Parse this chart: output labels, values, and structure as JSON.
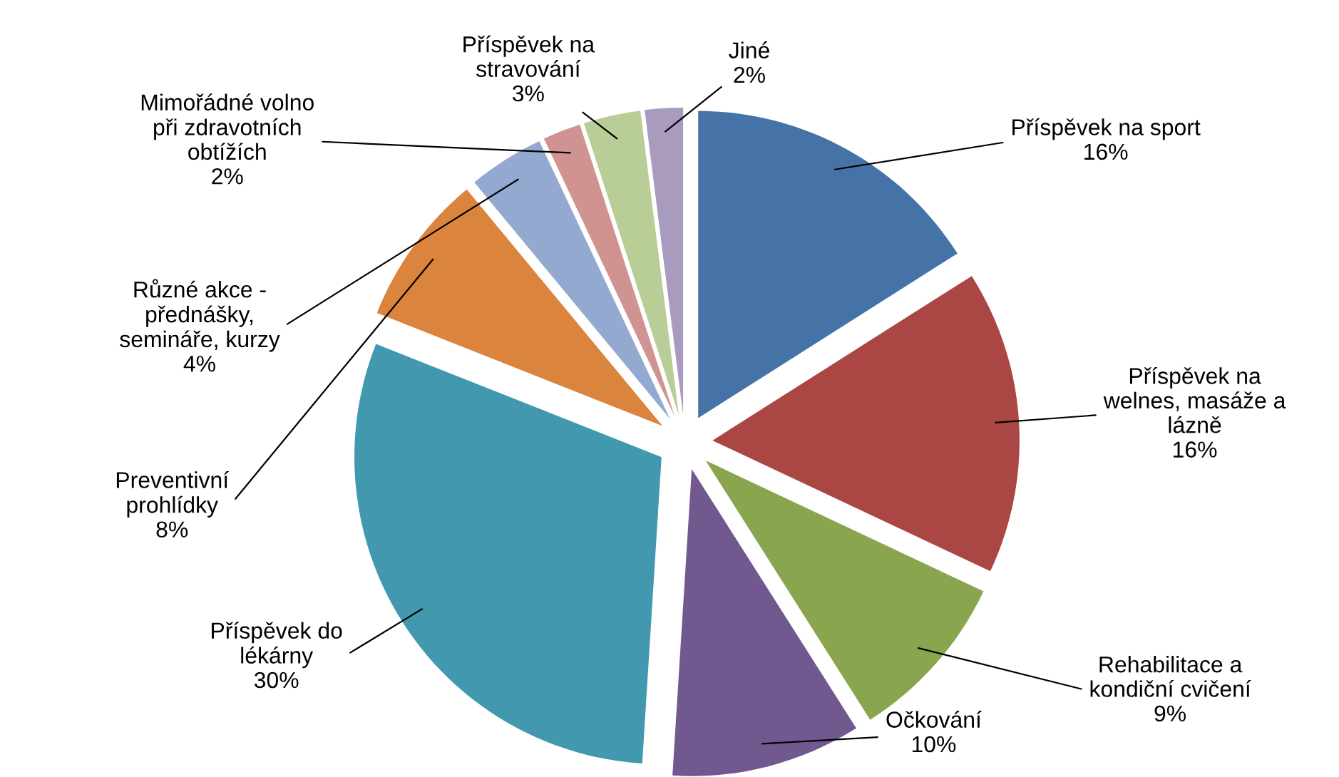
{
  "chart_data": {
    "type": "pie",
    "categories": [
      "Příspěvek na sport",
      "Příspěvek na\nwelnes, masáže a\nlázně",
      "Rehabilitace a\nkondiční cvičení",
      "Očkování",
      "Příspěvek do\nlékárny",
      "Preventivní\nprohlídky",
      "Různé akce -\npřednášky,\nsemináře, kurzy",
      "Mimořádné volno\npři zdravotních\nobtížích",
      "Příspěvek na\nstravování",
      "Jiné"
    ],
    "values": [
      16,
      16,
      9,
      10,
      30,
      8,
      4,
      2,
      3,
      2
    ],
    "colors": [
      "#4572a7",
      "#aa4643",
      "#89a54e",
      "#71588f",
      "#4198af",
      "#db843d",
      "#93a9cf",
      "#d19392",
      "#b9cd96",
      "#a99bbd"
    ],
    "value_labels": [
      "16%",
      "16%",
      "9%",
      "10%",
      "30%",
      "8%",
      "4%",
      "2%",
      "3%",
      "2%"
    ],
    "legend": false
  }
}
